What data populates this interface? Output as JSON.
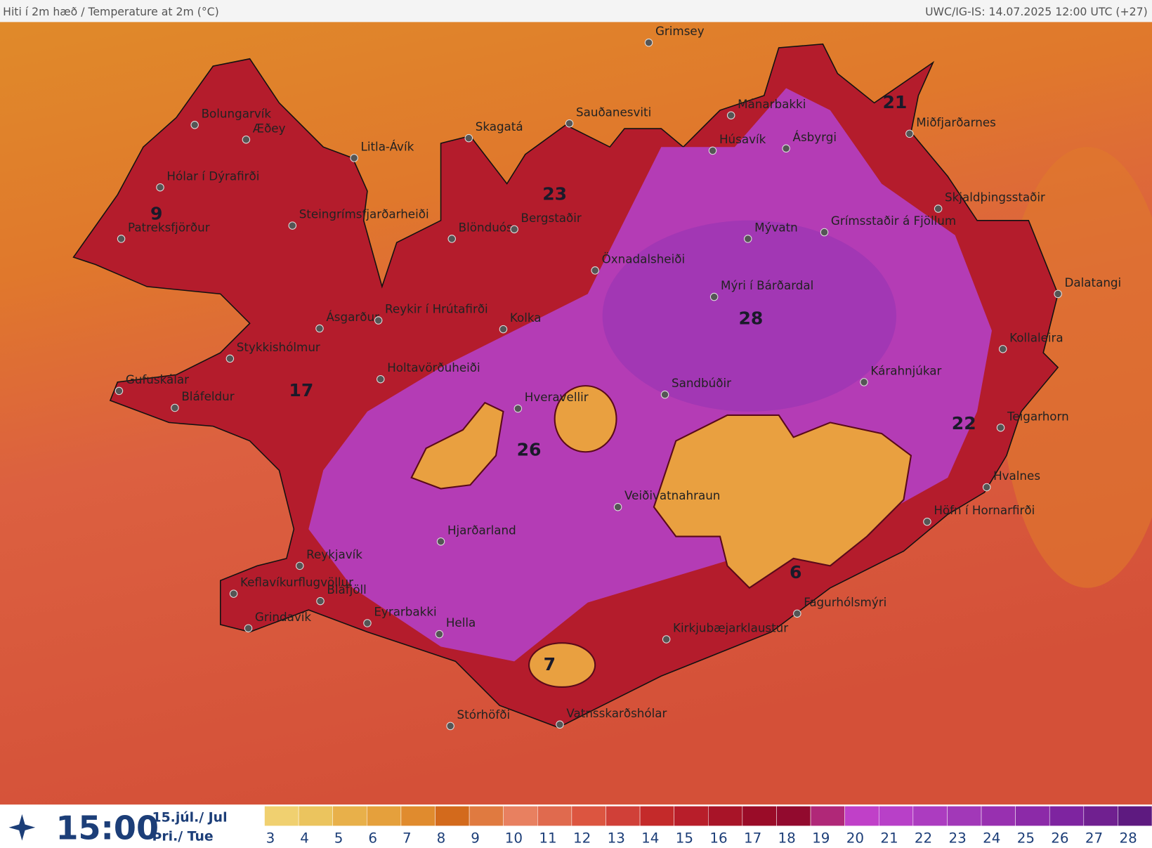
{
  "header": {
    "title": "Hiti í 2m hæð / Temperature at 2m (°C)",
    "source": "UWC/IG-IS: 14.07.2025 12:00 UTC (+27)"
  },
  "stations": [
    "Grimsey",
    "Bolungarvík",
    "Æðey",
    "Litla-Ávík",
    "Hólar í Dýrafirði",
    "Patreksfjörður",
    "Steingrímsfjarðarheiði",
    "Skagatá",
    "Sauðanesviti",
    "Mánarbakki",
    "Húsavík",
    "Ásbyrgi",
    "Miðfjarðarnes",
    "Blönduós",
    "Bergstaðir",
    "Öxnadalsheiði",
    "Mývatn",
    "Grímsstaðir á Fjöllum",
    "Skjaldþingsstaðir",
    "Mýri í Bárðardal",
    "Dalatangi",
    "Ásgarður",
    "Reykir í Hrútafirði",
    "Kolka",
    "Stykkishólmur",
    "Holtavörðuheiði",
    "Kollaleira",
    "Kárahnjúkar",
    "Gufuskálar",
    "Bláfeldur",
    "Hveravellir",
    "Sandbúðir",
    "Teigarhorn",
    "Hvalnes",
    "Veiðivatnahraun",
    "Höfn í Hornarfirði",
    "Hjarðarland",
    "Reykjavík",
    "Keflavíkurflugvöllur",
    "Bláfjöll",
    "Grindavík",
    "Eyrarbakki",
    "Fagurhólsmýri",
    "Hella",
    "Kirkjubæjarklaustur",
    "Stórhöfði",
    "Vatnsskarðshólar"
  ],
  "temperature_labels": [
    9,
    23,
    21,
    17,
    28,
    26,
    22,
    6,
    7
  ],
  "footer": {
    "time": "15:00",
    "date": "15.júl./ Jul",
    "weekday": "Þri./ Tue"
  },
  "legend": {
    "ticks": [
      3,
      4,
      5,
      6,
      7,
      8,
      9,
      10,
      11,
      12,
      13,
      14,
      15,
      16,
      17,
      18,
      19,
      20,
      21,
      22,
      23,
      24,
      25,
      26,
      27,
      28
    ],
    "colors": [
      "#f0d070",
      "#ebc45e",
      "#e8b04a",
      "#e5a03c",
      "#e08b2e",
      "#d36a1c",
      "#e07a40",
      "#e88060",
      "#e06a4e",
      "#dc5540",
      "#d04038",
      "#c42a2a",
      "#b81e2a",
      "#a81428",
      "#9a0c28",
      "#920a2e",
      "#b02878",
      "#c040c8",
      "#b840c8",
      "#ac3cc0",
      "#a238b8",
      "#9830b0",
      "#8c2aa8",
      "#7e24a0",
      "#702090",
      "#5e1a80"
    ]
  }
}
